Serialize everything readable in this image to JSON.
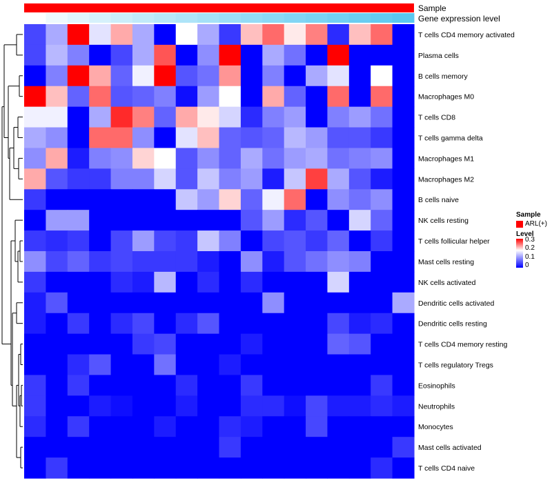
{
  "chart_data": {
    "type": "heatmap",
    "title": "",
    "annotation_rows": [
      {
        "label": "Sample",
        "color": "#ff0000"
      },
      {
        "label": "Gene expression level",
        "gradient": [
          "#ffffff",
          "#5ac8f0"
        ]
      }
    ],
    "rows": [
      "T cells CD4 memory activated",
      "Plasma cells",
      "B cells memory",
      "Macrophages M0",
      "T cells CD8",
      "T cells gamma delta",
      "Macrophages M1",
      "Macrophages M2",
      "B cells naive",
      "NK cells resting",
      "T cells follicular helper",
      "Mast cells resting",
      "NK cells activated",
      "Dendritic cells activated",
      "Dendritic cells resting",
      "T cells CD4 memory resting",
      "T cells regulatory  Tregs",
      "Eosinophils",
      "Neutrophils",
      "Monocytes",
      "Mast cells activated",
      "T cells CD4 naive"
    ],
    "n_columns": 18,
    "values": [
      [
        0.05,
        0.12,
        0.3,
        0.16,
        0.22,
        0.12,
        0.0,
        0.18,
        0.12,
        0.04,
        0.21,
        0.25,
        0.19,
        0.24,
        0.03,
        0.21,
        0.25,
        0.0
      ],
      [
        0.05,
        0.13,
        0.09,
        0.0,
        0.05,
        0.12,
        0.26,
        0.0,
        0.1,
        0.3,
        0.0,
        0.12,
        0.08,
        0.0,
        0.3,
        0.0,
        0.0,
        0.0
      ],
      [
        0.0,
        0.09,
        0.3,
        0.22,
        0.07,
        0.17,
        0.3,
        0.06,
        0.08,
        0.23,
        0.0,
        0.09,
        0.0,
        0.12,
        0.16,
        0.0,
        0.18,
        0.0
      ],
      [
        0.3,
        0.21,
        0.07,
        0.25,
        0.06,
        0.07,
        0.09,
        0.01,
        0.11,
        0.18,
        0.0,
        0.22,
        0.07,
        0.0,
        0.25,
        0.0,
        0.25,
        0.0
      ],
      [
        0.17,
        0.17,
        0.0,
        0.12,
        0.28,
        0.24,
        0.07,
        0.22,
        0.19,
        0.15,
        0.03,
        0.09,
        0.11,
        0.0,
        0.09,
        0.11,
        0.08,
        0.0
      ],
      [
        0.12,
        0.1,
        0.0,
        0.25,
        0.25,
        0.1,
        0.0,
        0.16,
        0.21,
        0.07,
        0.06,
        0.07,
        0.13,
        0.11,
        0.06,
        0.06,
        0.04,
        0.0
      ],
      [
        0.1,
        0.22,
        0.02,
        0.09,
        0.1,
        0.2,
        0.18,
        0.06,
        0.1,
        0.07,
        0.12,
        0.08,
        0.11,
        0.12,
        0.08,
        0.09,
        0.1,
        0.0
      ],
      [
        0.22,
        0.06,
        0.04,
        0.04,
        0.09,
        0.09,
        0.15,
        0.06,
        0.14,
        0.09,
        0.11,
        0.02,
        0.14,
        0.27,
        0.12,
        0.06,
        0.02,
        0.0
      ],
      [
        0.04,
        0.0,
        0.0,
        0.0,
        0.0,
        0.0,
        0.0,
        0.14,
        0.11,
        0.2,
        0.07,
        0.17,
        0.25,
        0.0,
        0.1,
        0.08,
        0.1,
        0.0
      ],
      [
        0.0,
        0.11,
        0.11,
        0.0,
        0.0,
        0.0,
        0.0,
        0.0,
        0.0,
        0.0,
        0.06,
        0.11,
        0.03,
        0.06,
        0.0,
        0.15,
        0.07,
        0.0
      ],
      [
        0.04,
        0.03,
        0.04,
        0.0,
        0.05,
        0.11,
        0.05,
        0.04,
        0.14,
        0.09,
        0.0,
        0.05,
        0.06,
        0.04,
        0.07,
        0.0,
        0.04,
        0.0
      ],
      [
        0.1,
        0.05,
        0.07,
        0.04,
        0.05,
        0.04,
        0.04,
        0.04,
        0.02,
        0.0,
        0.1,
        0.02,
        0.06,
        0.08,
        0.1,
        0.09,
        0.0,
        0.0
      ],
      [
        0.04,
        0.0,
        0.0,
        0.0,
        0.03,
        0.02,
        0.13,
        0.0,
        0.03,
        0.0,
        0.03,
        0.0,
        0.0,
        0.0,
        0.15,
        0.0,
        0.0,
        0.0
      ],
      [
        0.02,
        0.06,
        0.0,
        0.0,
        0.0,
        0.0,
        0.0,
        0.0,
        0.0,
        0.0,
        0.0,
        0.1,
        0.0,
        0.0,
        0.0,
        0.0,
        0.0,
        0.12
      ],
      [
        0.02,
        0.0,
        0.04,
        0.0,
        0.03,
        0.05,
        0.0,
        0.03,
        0.06,
        0.0,
        0.0,
        0.0,
        0.0,
        0.0,
        0.05,
        0.02,
        0.03,
        0.0
      ],
      [
        0.0,
        0.0,
        0.0,
        0.0,
        0.0,
        0.04,
        0.05,
        0.0,
        0.0,
        0.0,
        0.02,
        0.0,
        0.0,
        0.0,
        0.07,
        0.06,
        0.0,
        0.0
      ],
      [
        0.0,
        0.0,
        0.03,
        0.06,
        0.0,
        0.0,
        0.08,
        0.0,
        0.0,
        0.02,
        0.0,
        0.0,
        0.0,
        0.0,
        0.0,
        0.0,
        0.0,
        0.0
      ],
      [
        0.04,
        0.0,
        0.04,
        0.0,
        0.0,
        0.0,
        0.0,
        0.03,
        0.0,
        0.0,
        0.04,
        0.0,
        0.0,
        0.0,
        0.0,
        0.0,
        0.04,
        0.0
      ],
      [
        0.04,
        0.0,
        0.0,
        0.02,
        0.01,
        0.0,
        0.0,
        0.02,
        0.0,
        0.0,
        0.03,
        0.03,
        0.01,
        0.05,
        0.02,
        0.02,
        0.03,
        0.02
      ],
      [
        0.03,
        0.0,
        0.04,
        0.0,
        0.0,
        0.0,
        0.02,
        0.0,
        0.0,
        0.03,
        0.02,
        0.0,
        0.0,
        0.05,
        0.0,
        0.0,
        0.0,
        0.0
      ],
      [
        0.0,
        0.0,
        0.0,
        0.0,
        0.0,
        0.0,
        0.0,
        0.0,
        0.0,
        0.04,
        0.0,
        0.0,
        0.0,
        0.0,
        0.0,
        0.0,
        0.0,
        0.04
      ],
      [
        0.0,
        0.04,
        0.0,
        0.0,
        0.0,
        0.0,
        0.0,
        0.0,
        0.0,
        0.0,
        0.0,
        0.0,
        0.0,
        0.0,
        0.0,
        0.0,
        0.03,
        0.0
      ]
    ],
    "color_scale": {
      "min": 0,
      "max": 0.3,
      "low": "#0000ff",
      "mid": "#ffffff",
      "high": "#ff0000",
      "midpoint": 0.18
    },
    "legend": {
      "sample_title": "Sample",
      "sample_label": "ARL(+)",
      "level_title": "Level",
      "ticks": [
        "0.3",
        "0.2",
        "0.1",
        "0"
      ]
    },
    "dendrogram": "rows"
  }
}
